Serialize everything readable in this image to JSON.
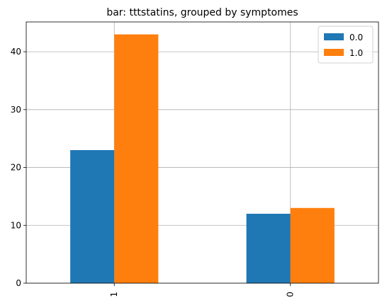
{
  "chart_data": {
    "type": "bar",
    "title": "bar: tttstatins, grouped by symptomes",
    "xlabel": "",
    "ylabel": "",
    "categories": [
      "1",
      "0"
    ],
    "series": [
      {
        "name": "0.0",
        "values": [
          23,
          12
        ],
        "color": "#1f77b4"
      },
      {
        "name": "1.0",
        "values": [
          43,
          13
        ],
        "color": "#ff7f0e"
      }
    ],
    "ylim": [
      0,
      45.15
    ],
    "yticks": [
      0,
      10,
      20,
      30,
      40
    ],
    "grid": true,
    "legend_position": "top-right"
  }
}
